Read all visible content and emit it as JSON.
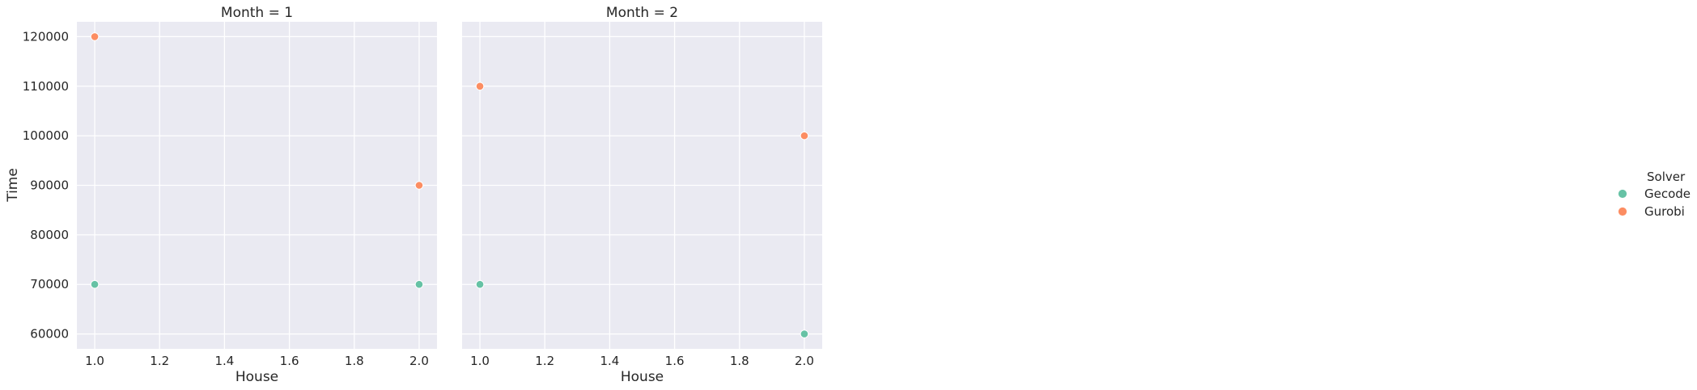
{
  "chart_data": {
    "type": "scatter",
    "ylabel": "Time",
    "xlabel": "House",
    "x_ticks": [
      1.0,
      1.2,
      1.4,
      1.6,
      1.8,
      2.0
    ],
    "x_tick_labels": [
      "1.0",
      "1.2",
      "1.4",
      "1.6",
      "1.8",
      "2.0"
    ],
    "y_ticks": [
      60000,
      70000,
      80000,
      90000,
      100000,
      110000,
      120000
    ],
    "y_tick_labels": [
      "60000",
      "70000",
      "80000",
      "90000",
      "100000",
      "110000",
      "120000"
    ],
    "xlim": [
      0.945,
      2.055
    ],
    "ylim": [
      57000,
      123000
    ],
    "grid": true,
    "legend": {
      "title": "Solver",
      "position": "right",
      "entries": [
        {
          "name": "Gecode",
          "color": "#66c2a5"
        },
        {
          "name": "Gurobi",
          "color": "#fc8d62"
        }
      ]
    },
    "panels": [
      {
        "title": "Month = 1",
        "series": [
          {
            "name": "Gecode",
            "color": "#66c2a5",
            "points": [
              {
                "x": 1.0,
                "y": 70000
              },
              {
                "x": 2.0,
                "y": 70000
              }
            ]
          },
          {
            "name": "Gurobi",
            "color": "#fc8d62",
            "points": [
              {
                "x": 1.0,
                "y": 120000
              },
              {
                "x": 2.0,
                "y": 90000
              }
            ]
          }
        ]
      },
      {
        "title": "Month = 2",
        "series": [
          {
            "name": "Gecode",
            "color": "#66c2a5",
            "points": [
              {
                "x": 1.0,
                "y": 70000
              },
              {
                "x": 2.0,
                "y": 60000
              }
            ]
          },
          {
            "name": "Gurobi",
            "color": "#fc8d62",
            "points": [
              {
                "x": 1.0,
                "y": 110000
              },
              {
                "x": 2.0,
                "y": 100000
              }
            ]
          }
        ]
      }
    ]
  }
}
